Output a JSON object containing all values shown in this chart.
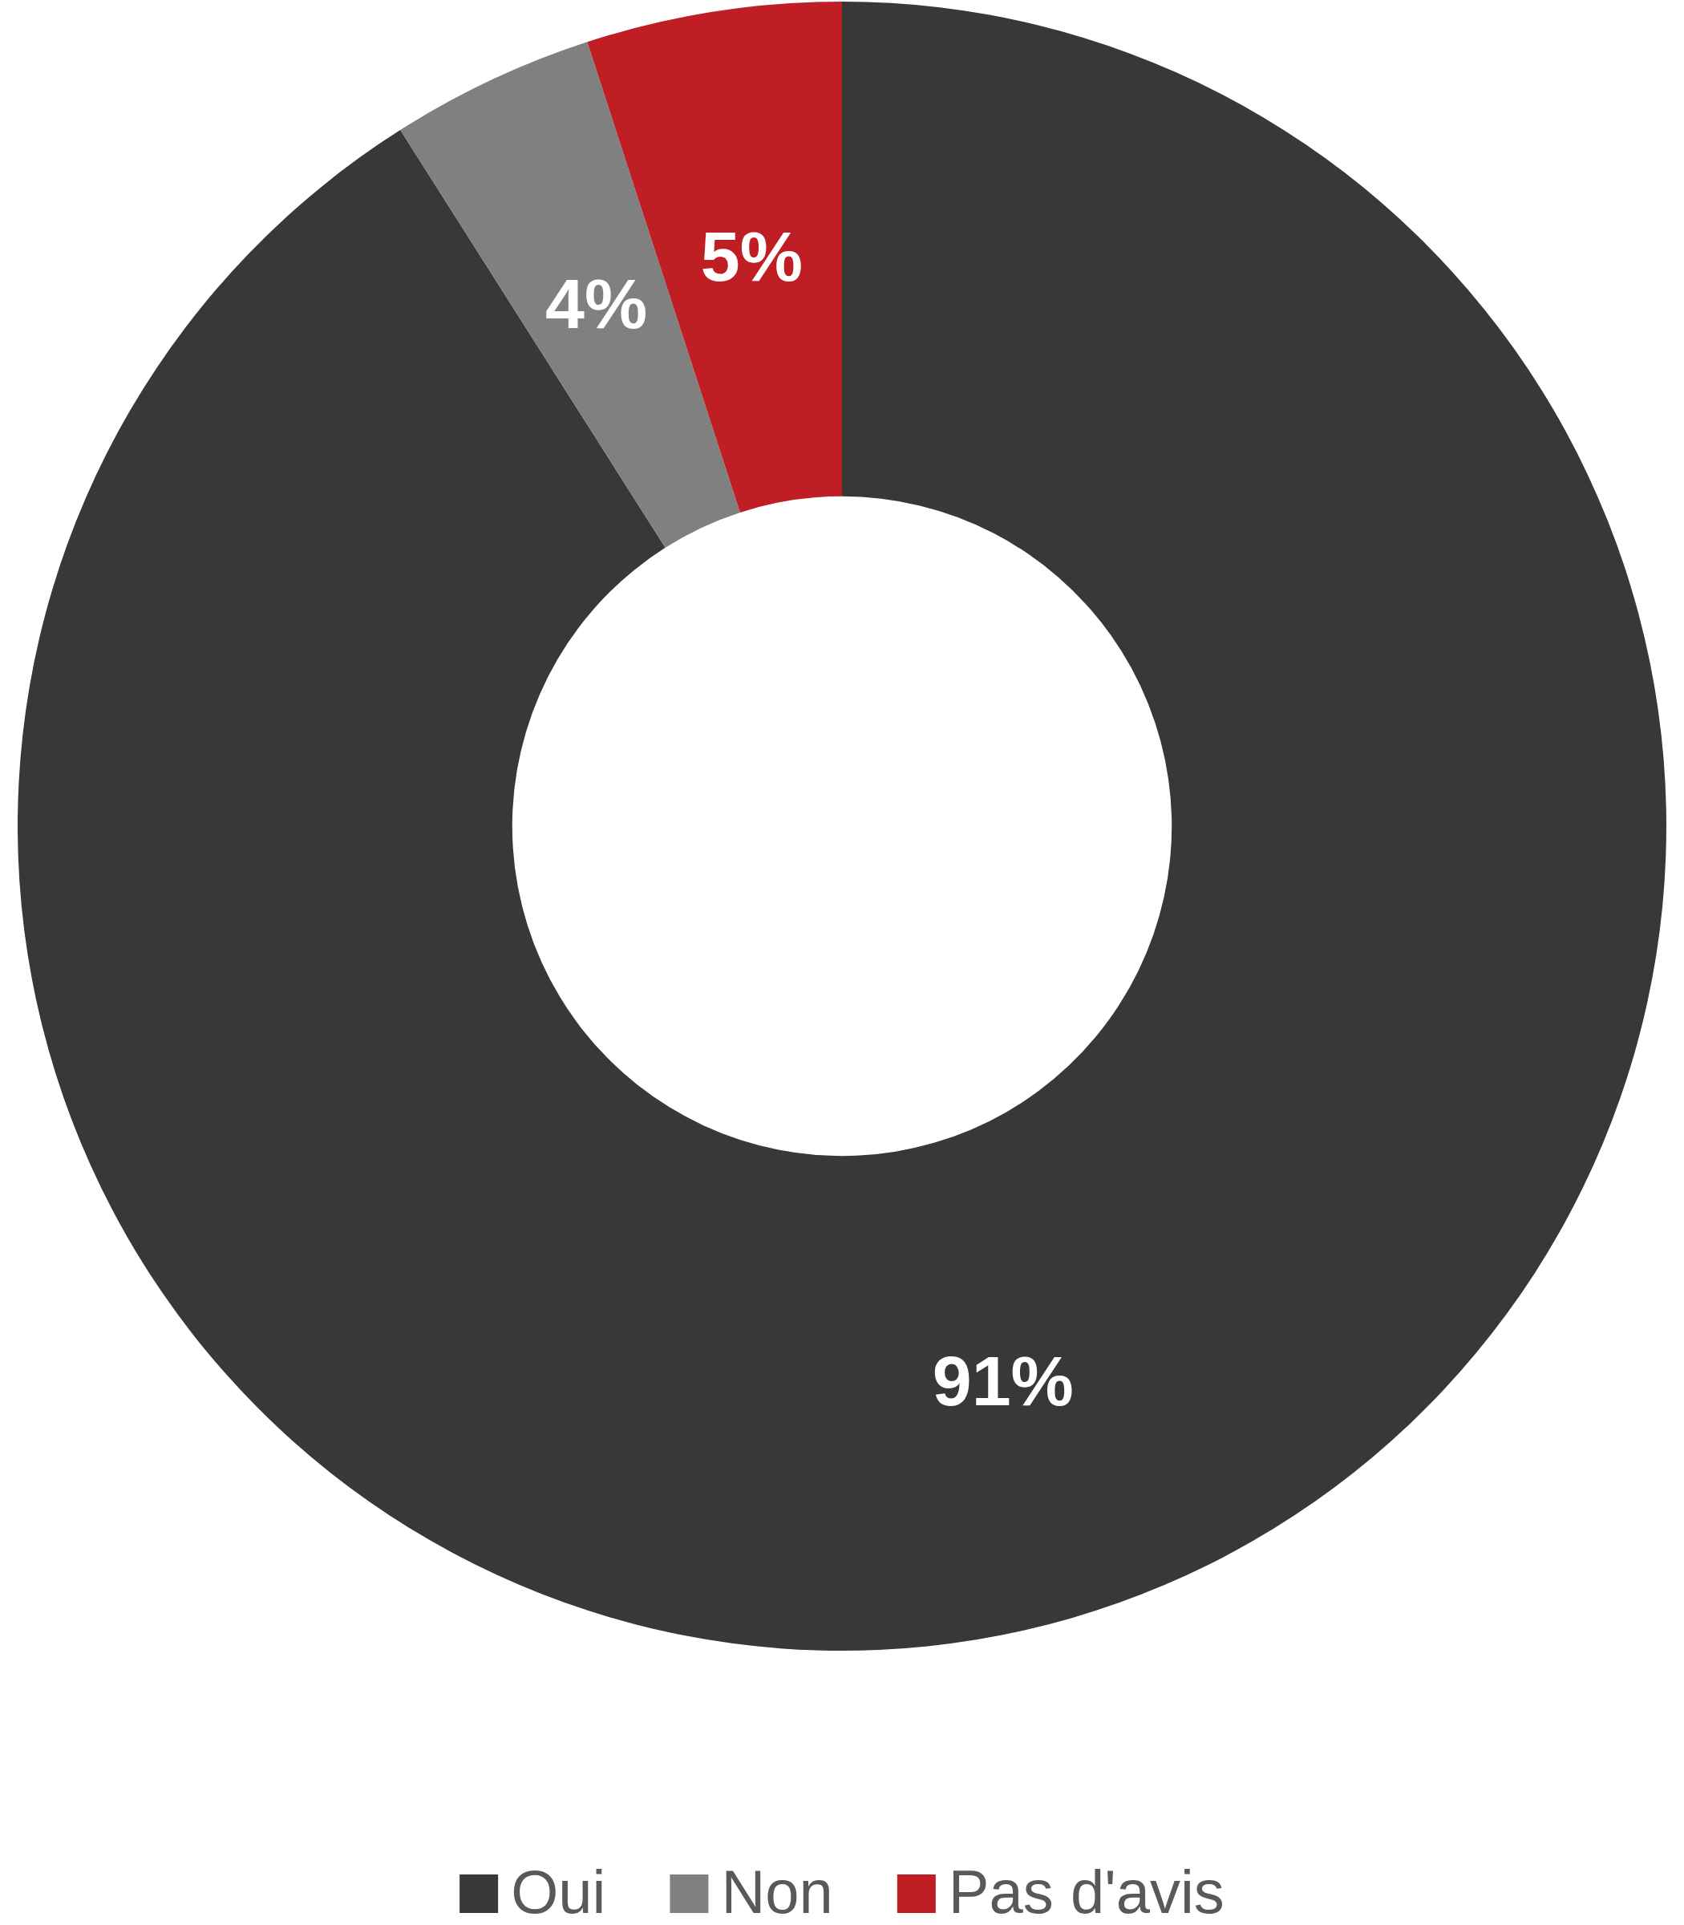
{
  "chart_data": {
    "type": "donut",
    "categories": [
      "Oui",
      "Non",
      "Pas d'avis"
    ],
    "values": [
      91,
      4,
      5
    ],
    "colors": [
      "#383838",
      "#808080",
      "#be1e24"
    ],
    "value_labels": [
      "91%",
      "4%",
      "5%"
    ],
    "legend": "bottom"
  }
}
